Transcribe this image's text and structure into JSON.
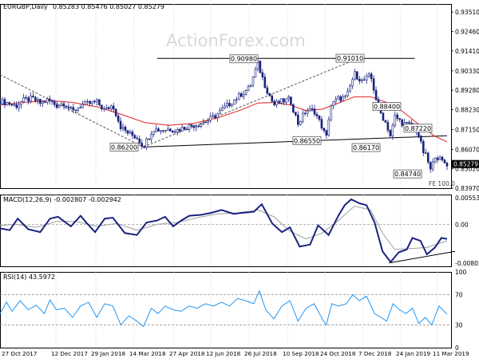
{
  "header": {
    "symbol_info": "EURGBP,Daily",
    "ohlc": "0.85283 0.85476 0.85027 0.85279"
  },
  "watermark": "ActionForex.com",
  "colors": {
    "candle": "#1a237e",
    "ma": "#e53935",
    "macd": "#1a237e",
    "signal": "#9e9e9e",
    "rsi": "#2196f3",
    "trendline": "#000000",
    "dashed": "#555555",
    "grid": "#bdbdbd",
    "watermark": "#d9d9d9"
  },
  "chart_data": [
    {
      "type": "candlestick",
      "title": "EURGBP,Daily 0.85283 0.85476 0.85027 0.85279",
      "y_ticks": [
        "0.93510",
        "0.92460",
        "0.91410",
        "0.90330",
        "0.89280",
        "0.88230",
        "0.87150",
        "0.86070",
        "0.85020",
        "0.83970"
      ],
      "current_price": "0.85279",
      "ylim": [
        0.8397,
        0.9395
      ],
      "x_labels": [
        "27 Oct 2017",
        "12 Dec 2017",
        "29 Jan 2018",
        "14 Mar 2018",
        "27 Apr 2018",
        "12 Jun 2018",
        "26 Jul 2018",
        "10 Sep 2018",
        "24 Oct 2018",
        "7 Dec 2018",
        "24 Jan 2019",
        "11 Mar 2019"
      ],
      "close_path": [
        [
          0,
          0.8868
        ],
        [
          10,
          0.8858
        ],
        [
          20,
          0.8842
        ],
        [
          30,
          0.8875
        ],
        [
          40,
          0.8882
        ],
        [
          50,
          0.8858
        ],
        [
          60,
          0.8875
        ],
        [
          70,
          0.8845
        ],
        [
          80,
          0.886
        ],
        [
          90,
          0.881
        ],
        [
          100,
          0.8845
        ],
        [
          110,
          0.8855
        ],
        [
          120,
          0.8865
        ],
        [
          130,
          0.8818
        ],
        [
          140,
          0.8848
        ],
        [
          150,
          0.8728
        ],
        [
          160,
          0.8693
        ],
        [
          170,
          0.8672
        ],
        [
          178,
          0.8622
        ],
        [
          190,
          0.8718
        ],
        [
          200,
          0.8712
        ],
        [
          210,
          0.8718
        ],
        [
          220,
          0.8712
        ],
        [
          230,
          0.8728
        ],
        [
          240,
          0.8738
        ],
        [
          250,
          0.8748
        ],
        [
          260,
          0.8768
        ],
        [
          270,
          0.8798
        ],
        [
          280,
          0.8838
        ],
        [
          290,
          0.8872
        ],
        [
          300,
          0.8908
        ],
        [
          310,
          0.8942
        ],
        [
          320,
          0.9072
        ],
        [
          330,
          0.8942
        ],
        [
          340,
          0.8848
        ],
        [
          350,
          0.8868
        ],
        [
          360,
          0.8878
        ],
        [
          370,
          0.8748
        ],
        [
          380,
          0.8818
        ],
        [
          390,
          0.8818
        ],
        [
          400,
          0.8728
        ],
        [
          405,
          0.8665
        ],
        [
          410,
          0.8842
        ],
        [
          420,
          0.8882
        ],
        [
          430,
          0.8888
        ],
        [
          440,
          0.9018
        ],
        [
          450,
          0.8975
        ],
        [
          460,
          0.9008
        ],
        [
          470,
          0.8825
        ],
        [
          480,
          0.8742
        ],
        [
          485,
          0.8675
        ],
        [
          490,
          0.8788
        ],
        [
          500,
          0.8748
        ],
        [
          510,
          0.8738
        ],
        [
          518,
          0.8712
        ],
        [
          525,
          0.8598
        ],
        [
          530,
          0.8562
        ],
        [
          535,
          0.8485
        ],
        [
          540,
          0.8578
        ],
        [
          548,
          0.8545
        ],
        [
          555,
          0.8528
        ]
      ],
      "ma_path": [
        [
          0,
          0.8848
        ],
        [
          30,
          0.8862
        ],
        [
          60,
          0.8872
        ],
        [
          90,
          0.8862
        ],
        [
          120,
          0.8838
        ],
        [
          150,
          0.8798
        ],
        [
          180,
          0.8752
        ],
        [
          210,
          0.8738
        ],
        [
          240,
          0.8748
        ],
        [
          270,
          0.8778
        ],
        [
          300,
          0.8822
        ],
        [
          320,
          0.8858
        ],
        [
          340,
          0.8862
        ],
        [
          360,
          0.8848
        ],
        [
          380,
          0.8818
        ],
        [
          400,
          0.8825
        ],
        [
          420,
          0.8858
        ],
        [
          440,
          0.8892
        ],
        [
          460,
          0.8892
        ],
        [
          480,
          0.8862
        ],
        [
          500,
          0.8812
        ],
        [
          520,
          0.8742
        ],
        [
          540,
          0.8678
        ],
        [
          555,
          0.8648
        ]
      ],
      "lines": [
        {
          "kind": "resistance",
          "from": [
            195,
            0.91
          ],
          "to": [
            515,
            0.91
          ]
        },
        {
          "kind": "support",
          "from": [
            178,
            0.862
          ],
          "to": [
            555,
            0.8681
          ]
        },
        {
          "kind": "dashed",
          "from": [
            0,
            0.9012
          ],
          "to": [
            178,
            0.862
          ]
        },
        {
          "kind": "dashed",
          "from": [
            178,
            0.862
          ],
          "to": [
            445,
            0.9101
          ]
        }
      ],
      "price_labels": [
        {
          "text": "0.90980",
          "price": 0.9098,
          "x": 288
        },
        {
          "text": "0.91010",
          "price": 0.9101,
          "x": 421
        },
        {
          "text": "0.88400",
          "price": 0.884,
          "x": 467
        },
        {
          "text": "0.87220",
          "price": 0.8722,
          "x": 506
        },
        {
          "text": "0.86200",
          "price": 0.862,
          "x": 138
        },
        {
          "text": "0.86550",
          "price": 0.8655,
          "x": 367
        },
        {
          "text": "0.86170",
          "price": 0.8617,
          "x": 441
        },
        {
          "text": "0.84740",
          "price": 0.8474,
          "x": 493
        }
      ],
      "fe_label": "FE 100.0"
    },
    {
      "type": "line",
      "title": "MACD(12,26,9) -0.002807 -0.002942",
      "y_ticks": [
        "0.005534",
        "0.00",
        "-0.00805"
      ],
      "ylim": [
        -0.0087,
        0.0062
      ],
      "zero_line": true,
      "macd_path": [
        [
          0,
          -0.0008
        ],
        [
          12,
          -0.0012
        ],
        [
          22,
          0.0012
        ],
        [
          35,
          -0.001
        ],
        [
          50,
          -0.0016
        ],
        [
          62,
          0.0012
        ],
        [
          72,
          0.0016
        ],
        [
          88,
          -0.0004
        ],
        [
          100,
          0.0018
        ],
        [
          108,
          0.0002
        ],
        [
          118,
          -0.0016
        ],
        [
          130,
          0.0012
        ],
        [
          140,
          0.0014
        ],
        [
          155,
          -0.0018
        ],
        [
          170,
          -0.0022
        ],
        [
          182,
          0.0004
        ],
        [
          195,
          0.0008
        ],
        [
          205,
          0.0016
        ],
        [
          215,
          -0.0004
        ],
        [
          225,
          0.0008
        ],
        [
          235,
          0.0018
        ],
        [
          250,
          0.002
        ],
        [
          262,
          0.0024
        ],
        [
          275,
          0.003
        ],
        [
          290,
          0.0022
        ],
        [
          300,
          0.0024
        ],
        [
          315,
          0.0026
        ],
        [
          325,
          0.0042
        ],
        [
          338,
          0.0002
        ],
        [
          350,
          -0.0016
        ],
        [
          360,
          -0.0006
        ],
        [
          372,
          -0.0046
        ],
        [
          385,
          -0.0042
        ],
        [
          395,
          -0.0002
        ],
        [
          408,
          -0.0022
        ],
        [
          420,
          0.0018
        ],
        [
          428,
          0.004
        ],
        [
          436,
          0.0052
        ],
        [
          446,
          0.0044
        ],
        [
          455,
          0.004
        ],
        [
          465,
          0.0004
        ],
        [
          475,
          -0.0056
        ],
        [
          485,
          -0.0078
        ],
        [
          495,
          -0.0058
        ],
        [
          505,
          -0.0052
        ],
        [
          512,
          -0.0028
        ],
        [
          522,
          -0.0034
        ],
        [
          530,
          -0.0062
        ],
        [
          540,
          -0.0048
        ],
        [
          548,
          -0.0028
        ],
        [
          555,
          -0.003
        ]
      ],
      "signal_path": [
        [
          0,
          -0.0002
        ],
        [
          20,
          0.0
        ],
        [
          45,
          -0.0006
        ],
        [
          70,
          0.0006
        ],
        [
          95,
          0.0006
        ],
        [
          120,
          -0.0004
        ],
        [
          145,
          0.0002
        ],
        [
          170,
          -0.0012
        ],
        [
          195,
          0.0
        ],
        [
          220,
          0.0004
        ],
        [
          245,
          0.0014
        ],
        [
          270,
          0.0022
        ],
        [
          295,
          0.0024
        ],
        [
          320,
          0.003
        ],
        [
          340,
          0.0016
        ],
        [
          360,
          -0.0014
        ],
        [
          380,
          -0.003
        ],
        [
          400,
          -0.0018
        ],
        [
          420,
          0.0008
        ],
        [
          440,
          0.0038
        ],
        [
          460,
          0.003
        ],
        [
          475,
          -0.0018
        ],
        [
          490,
          -0.0052
        ],
        [
          510,
          -0.005
        ],
        [
          530,
          -0.0048
        ],
        [
          555,
          -0.0034
        ]
      ],
      "trendline": {
        "from": [
          483,
          -0.008
        ],
        "to": [
          565,
          -0.0056
        ]
      }
    },
    {
      "type": "line",
      "title": "RSI(14) 43.5972",
      "y_ticks": [
        "100",
        "70",
        "30",
        "0"
      ],
      "ylim": [
        0,
        100
      ],
      "levels": [
        70,
        30
      ],
      "rsi_path": [
        [
          0,
          45
        ],
        [
          8,
          60
        ],
        [
          15,
          48
        ],
        [
          25,
          62
        ],
        [
          35,
          50
        ],
        [
          45,
          56
        ],
        [
          55,
          45
        ],
        [
          62,
          63
        ],
        [
          70,
          50
        ],
        [
          80,
          52
        ],
        [
          90,
          40
        ],
        [
          100,
          55
        ],
        [
          110,
          60
        ],
        [
          120,
          40
        ],
        [
          130,
          58
        ],
        [
          140,
          55
        ],
        [
          150,
          30
        ],
        [
          160,
          42
        ],
        [
          170,
          35
        ],
        [
          178,
          28
        ],
        [
          188,
          52
        ],
        [
          196,
          45
        ],
        [
          205,
          55
        ],
        [
          215,
          50
        ],
        [
          225,
          48
        ],
        [
          235,
          55
        ],
        [
          245,
          52
        ],
        [
          255,
          58
        ],
        [
          265,
          55
        ],
        [
          275,
          60
        ],
        [
          285,
          55
        ],
        [
          295,
          65
        ],
        [
          305,
          62
        ],
        [
          315,
          58
        ],
        [
          322,
          75
        ],
        [
          330,
          50
        ],
        [
          340,
          38
        ],
        [
          350,
          55
        ],
        [
          360,
          62
        ],
        [
          370,
          35
        ],
        [
          380,
          52
        ],
        [
          390,
          58
        ],
        [
          400,
          38
        ],
        [
          405,
          30
        ],
        [
          412,
          58
        ],
        [
          420,
          55
        ],
        [
          430,
          58
        ],
        [
          438,
          70
        ],
        [
          446,
          62
        ],
        [
          455,
          68
        ],
        [
          465,
          45
        ],
        [
          473,
          40
        ],
        [
          480,
          35
        ],
        [
          488,
          58
        ],
        [
          496,
          50
        ],
        [
          504,
          45
        ],
        [
          512,
          52
        ],
        [
          520,
          32
        ],
        [
          528,
          40
        ],
        [
          536,
          30
        ],
        [
          545,
          55
        ],
        [
          555,
          44
        ]
      ]
    }
  ]
}
